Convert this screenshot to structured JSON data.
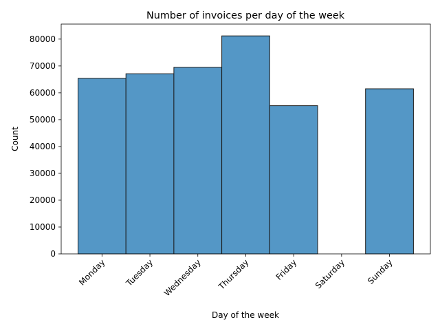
{
  "chart_data": {
    "type": "bar",
    "title": "Number of invoices per day of the week",
    "xlabel": "Day of the week",
    "ylabel": "Count",
    "categories": [
      "Monday",
      "Tuesday",
      "Wednesday",
      "Thursday",
      "Friday",
      "Saturday",
      "Sunday"
    ],
    "values": [
      65400,
      67100,
      69500,
      81200,
      55200,
      0,
      61500
    ],
    "ylim": [
      0,
      85600
    ],
    "yticks": [
      0,
      10000,
      20000,
      30000,
      40000,
      50000,
      60000,
      70000,
      80000
    ],
    "bar_color": "#5497c6",
    "edge_color": "#1a1a1a",
    "grid": false,
    "legend": "none"
  }
}
